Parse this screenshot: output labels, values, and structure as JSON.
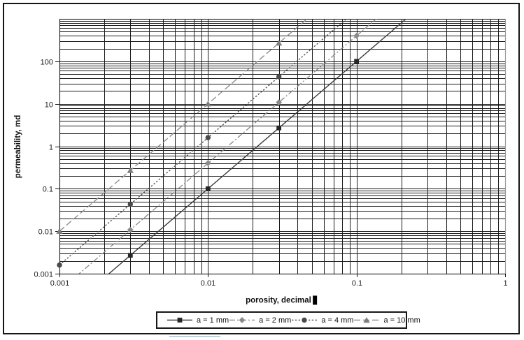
{
  "chart_data": {
    "type": "line",
    "title": "",
    "xlabel": "porosity, decimal",
    "ylabel": "permeability, md",
    "x_scale": "log",
    "y_scale": "log",
    "xlim": [
      0.001,
      1
    ],
    "ylim": [
      0.001,
      1000
    ],
    "grid": {
      "major": true,
      "minor": true
    },
    "legend_position": "bottom-center",
    "x_ticks": [
      {
        "value": 0.001,
        "label": "0.001"
      },
      {
        "value": 0.01,
        "label": "0.01"
      },
      {
        "value": 0.1,
        "label": "0.1"
      },
      {
        "value": 1,
        "label": "1"
      }
    ],
    "y_ticks": [
      {
        "value": 100,
        "label": "100"
      },
      {
        "value": 10,
        "label": "10"
      },
      {
        "value": 1,
        "label": "1"
      },
      {
        "value": 0.1,
        "label": "0.1"
      },
      {
        "value": 0.01,
        "label": "0.01"
      },
      {
        "value": 0.001,
        "label": "0.001"
      }
    ],
    "series": [
      {
        "name": "a = 1 mm",
        "marker": "square",
        "line_style": "solid",
        "line_color": "#3d3d3d",
        "marker_color": "#262626",
        "x": [
          0.003,
          0.01,
          0.03,
          0.1
        ],
        "y": [
          0.0027,
          0.1,
          2.7,
          100
        ]
      },
      {
        "name": "a = 2 mm",
        "marker": "diamond",
        "line_style": "dash-dot",
        "line_color": "#8f8f8f",
        "marker_color": "#8a8a8a",
        "x": [
          0.003,
          0.01,
          0.03,
          0.1
        ],
        "y": [
          0.0108,
          0.4,
          10.8,
          400
        ]
      },
      {
        "name": "a = 4 mm",
        "marker": "circle",
        "line_style": "dot",
        "line_color": "#565656",
        "marker_color": "#4a4a4a",
        "x": [
          0.001,
          0.003,
          0.01,
          0.03
        ],
        "y": [
          0.0016,
          0.0432,
          1.6,
          43.2
        ]
      },
      {
        "name": "a = 10 mm",
        "marker": "triangle",
        "line_style": "long-dash",
        "line_color": "#8f8f8f",
        "marker_color": "#7d7d7d",
        "x": [
          0.001,
          0.003,
          0.01,
          0.03
        ],
        "y": [
          0.01,
          0.27,
          10,
          270
        ]
      }
    ],
    "colors": {
      "gridline": "#1a1a1a",
      "plot_border": "#9a9a9a",
      "axis": "#141414",
      "tick_text": "#1c1c1c",
      "frame_border": "#161616",
      "footer_highlight": "#b9d3e9"
    }
  }
}
